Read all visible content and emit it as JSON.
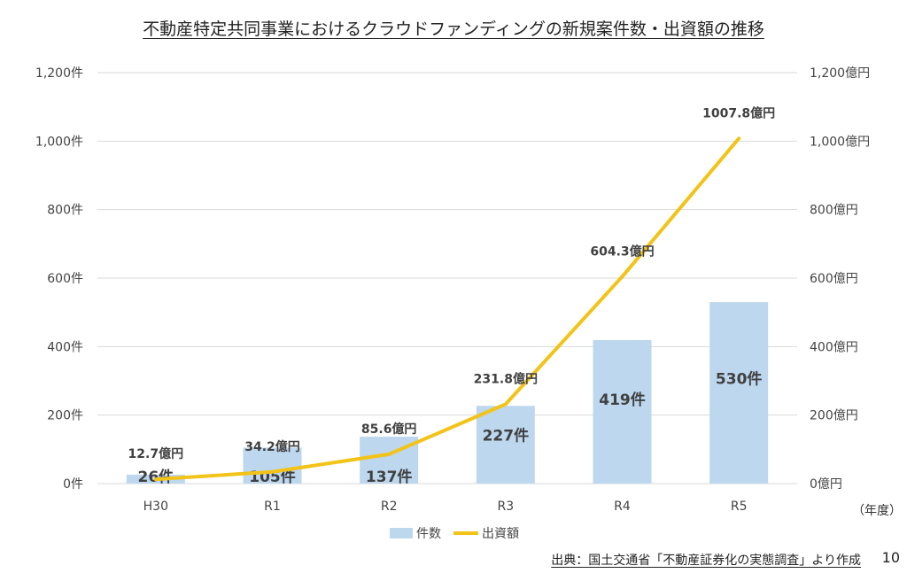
{
  "title": "不動産特定共同事業におけるクラウドファンディングの新規案件数・出資額の推移",
  "source_note": "出典：国土交通省「不動産証券化の実態調査」より作成",
  "page_number": "10",
  "x_unit_note": "（年度）",
  "colors": {
    "bar": "#bdd7ee",
    "line": "#f2c318",
    "grid": "#d9d9d9"
  },
  "chart_data": {
    "type": "bar+line",
    "categories": [
      "H30",
      "R1",
      "R2",
      "R3",
      "R4",
      "R5"
    ],
    "series": [
      {
        "name": "件数",
        "type": "bar",
        "axis": "left",
        "values": [
          26,
          105,
          137,
          227,
          419,
          530
        ],
        "labels": [
          "26件",
          "105件",
          "137件",
          "227件",
          "419件",
          "530件"
        ]
      },
      {
        "name": "出資額",
        "type": "line",
        "axis": "right",
        "values": [
          12.7,
          34.2,
          85.6,
          231.8,
          604.3,
          1007.8
        ],
        "labels": [
          "12.7億円",
          "34.2億円",
          "85.6億円",
          "231.8億円",
          "604.3億円",
          "1007.8億円"
        ]
      }
    ],
    "left_axis": {
      "ylim": [
        0,
        1200
      ],
      "ticks": [
        "0件",
        "200件",
        "400件",
        "600件",
        "800件",
        "1,000件",
        "1,200件"
      ]
    },
    "right_axis": {
      "ylim": [
        0,
        1200
      ],
      "ticks": [
        "0億円",
        "200億円",
        "400億円",
        "600億円",
        "800億円",
        "1,000億円",
        "1,200億円"
      ]
    },
    "legend": {
      "position": "bottom",
      "entries": [
        "件数",
        "出資額"
      ]
    },
    "grid": true
  }
}
